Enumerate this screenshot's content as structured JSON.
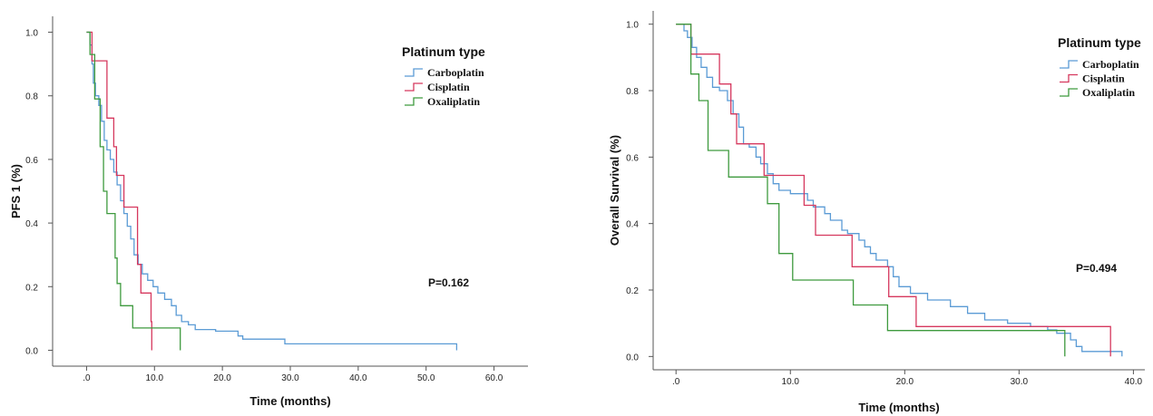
{
  "chart_data": [
    {
      "type": "line",
      "step": true,
      "xlabel": "Time (months)",
      "ylabel": "PFS 1 (%)",
      "xlim": [
        -5,
        65
      ],
      "ylim": [
        -0.05,
        1.05
      ],
      "x_ticks": [
        0,
        10,
        20,
        30,
        40,
        50,
        60
      ],
      "x_tick_labels": [
        ".0",
        "10.0",
        "20.0",
        "30.0",
        "40.0",
        "50.0",
        "60.0"
      ],
      "y_ticks": [
        0,
        0.2,
        0.4,
        0.6,
        0.8,
        1.0
      ],
      "y_tick_labels": [
        "0.0",
        "0.2",
        "0.4",
        "0.6",
        "0.8",
        "1.0"
      ],
      "legend": {
        "title": "Platinum type",
        "position": "top-right"
      },
      "annotation": "P=0.162",
      "series": [
        {
          "name": "Carboplatin",
          "color": "#5b9bd5",
          "points": [
            [
              0,
              1.0
            ],
            [
              0.5,
              0.96
            ],
            [
              0.8,
              0.9
            ],
            [
              1.0,
              0.84
            ],
            [
              1.3,
              0.8
            ],
            [
              1.8,
              0.77
            ],
            [
              2.2,
              0.72
            ],
            [
              2.6,
              0.66
            ],
            [
              3.0,
              0.63
            ],
            [
              3.5,
              0.6
            ],
            [
              4.0,
              0.56
            ],
            [
              4.5,
              0.52
            ],
            [
              5.0,
              0.47
            ],
            [
              5.5,
              0.43
            ],
            [
              6.0,
              0.39
            ],
            [
              6.5,
              0.35
            ],
            [
              7.0,
              0.3
            ],
            [
              7.6,
              0.27
            ],
            [
              8.2,
              0.24
            ],
            [
              9.0,
              0.22
            ],
            [
              9.8,
              0.2
            ],
            [
              10.5,
              0.18
            ],
            [
              11.5,
              0.16
            ],
            [
              12.5,
              0.14
            ],
            [
              13.2,
              0.11
            ],
            [
              14.0,
              0.09
            ],
            [
              15.0,
              0.08
            ],
            [
              16.0,
              0.065
            ],
            [
              19.0,
              0.06
            ],
            [
              22.3,
              0.045
            ],
            [
              23.0,
              0.035
            ],
            [
              29.2,
              0.02
            ],
            [
              54.5,
              0.02
            ],
            [
              54.5,
              0.0
            ]
          ]
        },
        {
          "name": "Cisplatin",
          "color": "#d6385e",
          "points": [
            [
              0,
              1.0
            ],
            [
              0.8,
              0.91
            ],
            [
              3.0,
              0.73
            ],
            [
              4.0,
              0.64
            ],
            [
              4.4,
              0.55
            ],
            [
              5.5,
              0.45
            ],
            [
              7.5,
              0.27
            ],
            [
              8.0,
              0.18
            ],
            [
              9.5,
              0.09
            ],
            [
              9.6,
              0.0
            ]
          ]
        },
        {
          "name": "Oxaliplatin",
          "color": "#3e9a3e",
          "points": [
            [
              0,
              1.0
            ],
            [
              0.5,
              0.93
            ],
            [
              1.2,
              0.79
            ],
            [
              2.0,
              0.64
            ],
            [
              2.5,
              0.5
            ],
            [
              3.0,
              0.43
            ],
            [
              4.2,
              0.29
            ],
            [
              4.5,
              0.21
            ],
            [
              5.0,
              0.14
            ],
            [
              6.8,
              0.07
            ],
            [
              13.8,
              0.07
            ],
            [
              13.8,
              0.0
            ]
          ]
        }
      ]
    },
    {
      "type": "line",
      "step": true,
      "xlabel": "Time (months)",
      "ylabel": "Overall Survival (%)",
      "xlim": [
        -2,
        41
      ],
      "ylim": [
        -0.04,
        1.04
      ],
      "x_ticks": [
        0,
        10,
        20,
        30,
        40
      ],
      "x_tick_labels": [
        ".0",
        "10.0",
        "20.0",
        "30.0",
        "40.0"
      ],
      "y_ticks": [
        0,
        0.2,
        0.4,
        0.6,
        0.8,
        1.0
      ],
      "y_tick_labels": [
        "0.0",
        "0.2",
        "0.4",
        "0.6",
        "0.8",
        "1.0"
      ],
      "legend": {
        "title": "Platinum type",
        "position": "top-right"
      },
      "annotation": "P=0.494",
      "series": [
        {
          "name": "Carboplatin",
          "color": "#5b9bd5",
          "points": [
            [
              0,
              1.0
            ],
            [
              0.7,
              0.98
            ],
            [
              1.0,
              0.96
            ],
            [
              1.4,
              0.93
            ],
            [
              1.8,
              0.9
            ],
            [
              2.2,
              0.87
            ],
            [
              2.7,
              0.84
            ],
            [
              3.2,
              0.81
            ],
            [
              3.8,
              0.8
            ],
            [
              4.5,
              0.77
            ],
            [
              5.0,
              0.73
            ],
            [
              5.5,
              0.69
            ],
            [
              5.9,
              0.64
            ],
            [
              6.4,
              0.63
            ],
            [
              7.0,
              0.6
            ],
            [
              7.4,
              0.58
            ],
            [
              8.0,
              0.55
            ],
            [
              8.5,
              0.52
            ],
            [
              9.0,
              0.5
            ],
            [
              10.0,
              0.49
            ],
            [
              11.5,
              0.47
            ],
            [
              12.0,
              0.45
            ],
            [
              13.0,
              0.43
            ],
            [
              13.5,
              0.41
            ],
            [
              14.5,
              0.38
            ],
            [
              15.0,
              0.37
            ],
            [
              16.0,
              0.35
            ],
            [
              16.5,
              0.33
            ],
            [
              17.0,
              0.31
            ],
            [
              17.5,
              0.29
            ],
            [
              18.5,
              0.27
            ],
            [
              19.0,
              0.24
            ],
            [
              19.5,
              0.21
            ],
            [
              20.5,
              0.19
            ],
            [
              22.0,
              0.17
            ],
            [
              24.0,
              0.15
            ],
            [
              25.5,
              0.13
            ],
            [
              27.0,
              0.11
            ],
            [
              29.0,
              0.1
            ],
            [
              31.0,
              0.09
            ],
            [
              32.5,
              0.08
            ],
            [
              33.3,
              0.07
            ],
            [
              34.5,
              0.05
            ],
            [
              35.0,
              0.03
            ],
            [
              35.5,
              0.015
            ],
            [
              38.5,
              0.015
            ],
            [
              39.0,
              0.0
            ]
          ]
        },
        {
          "name": "Cisplatin",
          "color": "#d6385e",
          "points": [
            [
              0,
              1.0
            ],
            [
              1.3,
              0.91
            ],
            [
              3.8,
              0.82
            ],
            [
              4.8,
              0.73
            ],
            [
              5.3,
              0.64
            ],
            [
              7.7,
              0.545
            ],
            [
              11.2,
              0.455
            ],
            [
              12.2,
              0.365
            ],
            [
              15.4,
              0.27
            ],
            [
              18.6,
              0.18
            ],
            [
              21.0,
              0.09
            ],
            [
              38.0,
              0.09
            ],
            [
              38.0,
              0.0
            ]
          ]
        },
        {
          "name": "Oxaliplatin",
          "color": "#3e9a3e",
          "points": [
            [
              0,
              1.0
            ],
            [
              1.3,
              0.85
            ],
            [
              2.0,
              0.77
            ],
            [
              2.8,
              0.62
            ],
            [
              4.6,
              0.54
            ],
            [
              8.0,
              0.46
            ],
            [
              9.0,
              0.31
            ],
            [
              10.2,
              0.23
            ],
            [
              15.5,
              0.155
            ],
            [
              18.5,
              0.078
            ],
            [
              33.8,
              0.078
            ],
            [
              34.0,
              0.0
            ]
          ]
        }
      ]
    }
  ]
}
